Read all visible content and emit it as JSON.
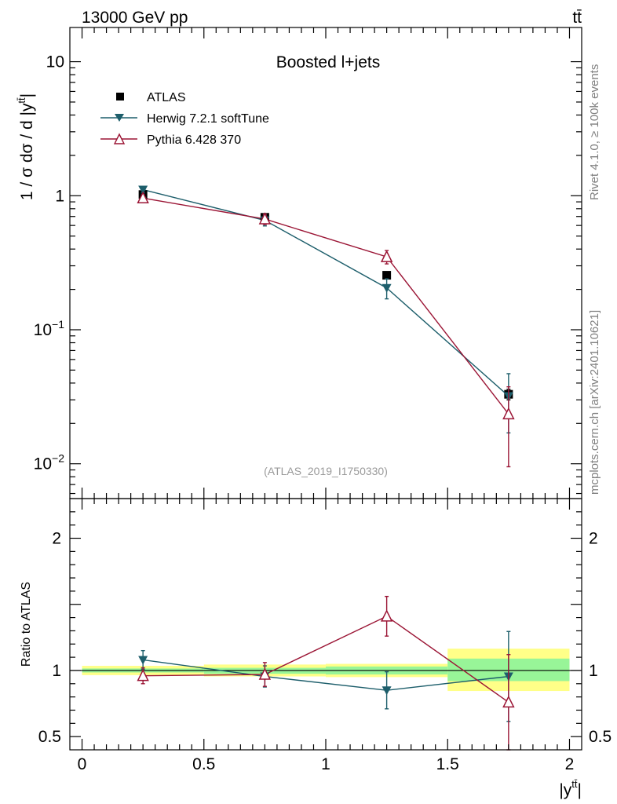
{
  "header": {
    "energy_label": "13000 GeV pp",
    "process_label": "t",
    "process_label_bar": "t̄"
  },
  "side_labels": {
    "rivet": "Rivet 4.1.0, ≥ 100k events",
    "mcplots": "mcplots.cern.ch [arXiv:2401.10621]"
  },
  "colors": {
    "data": "#000000",
    "herwig": "#1d5e6b",
    "pythia": "#9b1535",
    "band_inner": "#98f598",
    "band_outer": "#ffff88",
    "analysis_id": "#9a9a9a"
  },
  "chart_data": [
    {
      "type": "scatter",
      "panel": "main",
      "title": "Boosted l+jets",
      "analysis_id": "(ATLAS_2019_I1750330)",
      "xlabel": "|y",
      "xlabel_sup": "tt̄",
      "xlabel_close": "|",
      "ylabel": "1 / σ dσ / d |y",
      "ylabel_sup": "tt̄",
      "ylabel_close": "|",
      "yscale": "log",
      "xlim": [
        -0.05,
        2.05
      ],
      "ylim": [
        0.0055,
        18
      ],
      "y_ticks": [
        {
          "value": 10,
          "label": "10"
        },
        {
          "value": 1,
          "label": "1"
        },
        {
          "value": 0.1,
          "label": "10",
          "exp": "−1"
        },
        {
          "value": 0.01,
          "label": "10",
          "exp": "−2"
        }
      ],
      "legend_position": "top-left",
      "series": [
        {
          "name": "ATLAS",
          "marker": "square",
          "x": [
            0.25,
            0.75,
            1.25,
            1.75
          ],
          "y": [
            1.02,
            0.69,
            0.255,
            0.033
          ],
          "yerr": [
            0.04,
            0.03,
            0.012,
            0.003
          ]
        },
        {
          "name": "Herwig 7.2.1 softTune",
          "marker": "triangle-down",
          "x": [
            0.25,
            0.75,
            1.25,
            1.75
          ],
          "y": [
            1.11,
            0.655,
            0.205,
            0.032
          ],
          "yerr": [
            0.06,
            0.06,
            0.035,
            0.015
          ]
        },
        {
          "name": "Pythia 6.428 370",
          "marker": "triangle-up-open",
          "x": [
            0.25,
            0.75,
            1.25,
            1.75
          ],
          "y": [
            0.96,
            0.67,
            0.35,
            0.0235
          ],
          "yerr": [
            0.06,
            0.06,
            0.04,
            0.014
          ]
        }
      ]
    },
    {
      "type": "scatter",
      "panel": "ratio",
      "ylabel": "Ratio to ATLAS",
      "xlabel": "|y",
      "xlabel_sup": "tt̄",
      "xlabel_close": "|",
      "xlim": [
        -0.05,
        2.05
      ],
      "ylim": [
        0.4,
        2.3
      ],
      "reference_line": 1,
      "x_ticks": [
        {
          "value": 0,
          "label": "0"
        },
        {
          "value": 0.5,
          "label": "0.5"
        },
        {
          "value": 1,
          "label": "1"
        },
        {
          "value": 1.5,
          "label": "1.5"
        },
        {
          "value": 2,
          "label": "2"
        }
      ],
      "y_ticks": [
        {
          "value": 2,
          "label": "2"
        },
        {
          "value": 1,
          "label": "1"
        },
        {
          "value": 0.5,
          "label": "0.5"
        }
      ],
      "bands": [
        {
          "x0": 0.0,
          "x1": 0.5,
          "inner": [
            0.985,
            1.015
          ],
          "outer": [
            0.965,
            1.035
          ]
        },
        {
          "x0": 0.5,
          "x1": 1.0,
          "inner": [
            0.975,
            1.02
          ],
          "outer": [
            0.955,
            1.045
          ]
        },
        {
          "x0": 1.0,
          "x1": 1.5,
          "inner": [
            0.97,
            1.03
          ],
          "outer": [
            0.95,
            1.05
          ]
        },
        {
          "x0": 1.5,
          "x1": 2.0,
          "inner": [
            0.92,
            1.09
          ],
          "outer": [
            0.845,
            1.165
          ]
        }
      ],
      "series": [
        {
          "name": "Herwig 7.2.1 softTune",
          "marker": "triangle-down",
          "x": [
            0.25,
            0.75,
            1.25,
            1.75
          ],
          "y": [
            1.08,
            0.955,
            0.85,
            0.955
          ],
          "yerr": [
            0.07,
            0.08,
            0.14,
            0.34
          ]
        },
        {
          "name": "Pythia 6.428 370",
          "marker": "triangle-up-open",
          "x": [
            0.25,
            0.75,
            1.25,
            1.75
          ],
          "y": [
            0.96,
            0.97,
            1.41,
            0.76
          ],
          "yerr": [
            0.06,
            0.09,
            0.15,
            0.36
          ]
        }
      ]
    }
  ]
}
